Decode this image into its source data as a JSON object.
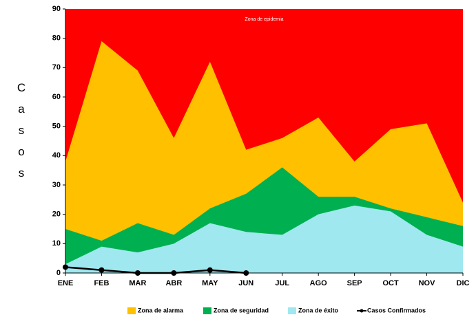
{
  "chart_data": {
    "type": "area",
    "y_label": "Casos",
    "annotation": "Zona de epidemia",
    "epidemic_color": "#ff0000",
    "categories": [
      "ENE",
      "FEB",
      "MAR",
      "ABR",
      "MAY",
      "JUN",
      "JUL",
      "AGO",
      "SEP",
      "OCT",
      "NOV",
      "DIC"
    ],
    "series": [
      {
        "name": "Zona de alarma",
        "color": "#ffc000",
        "values": [
          38,
          79,
          69,
          46,
          72,
          42,
          46,
          53,
          38,
          49,
          51,
          24
        ]
      },
      {
        "name": "Zona de seguridad",
        "color": "#00b050",
        "values": [
          15,
          11,
          17,
          13,
          22,
          27,
          36,
          26,
          26,
          22,
          19,
          16
        ]
      },
      {
        "name": "Zona de éxito",
        "color": "#a0e8f0",
        "values": [
          3,
          9,
          7,
          10,
          17,
          14,
          13,
          20,
          23,
          21,
          13,
          9
        ]
      },
      {
        "name": "Casos Confirmados",
        "color": "#000000",
        "type": "line",
        "values": [
          2,
          1,
          0,
          0,
          1,
          0,
          null,
          null,
          null,
          null,
          null,
          null
        ]
      }
    ],
    "ylim": [
      0,
      90
    ],
    "yticks": [
      0,
      10,
      20,
      30,
      40,
      50,
      60,
      70,
      80,
      90
    ]
  }
}
